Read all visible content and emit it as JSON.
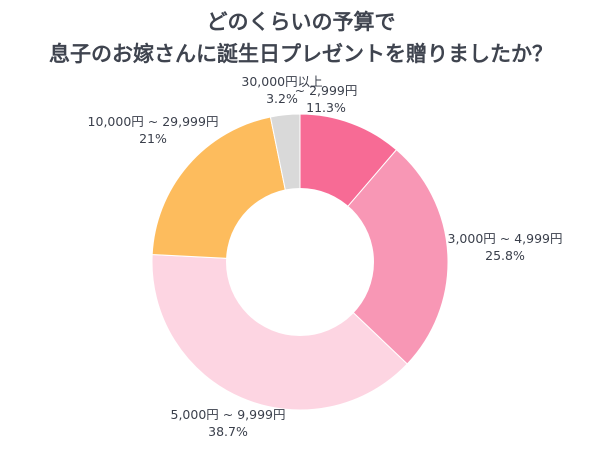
{
  "chart_data": {
    "type": "pie",
    "title_lines": [
      "どのくらいの予算で",
      "息子のお嫁さんに誕生日プレゼントを贈りましたか？"
    ],
    "slices": [
      {
        "label": "~ 2,999円",
        "value": 11.3,
        "display": "11.3%",
        "color": "#f76b95"
      },
      {
        "label": "3,000円 ~ 4,999円",
        "value": 25.8,
        "display": "25.8%",
        "color": "#f897b5"
      },
      {
        "label": "5,000円 ~ 9,999円",
        "value": 38.7,
        "display": "38.7%",
        "color": "#fdd5e2"
      },
      {
        "label": "10,000円 ~ 29,999円",
        "value": 21,
        "display": "21%",
        "color": "#fdbc5d"
      },
      {
        "label": "30,000円以上",
        "value": 3.2,
        "display": "3.2%",
        "color": "#d9d9d9"
      }
    ]
  }
}
